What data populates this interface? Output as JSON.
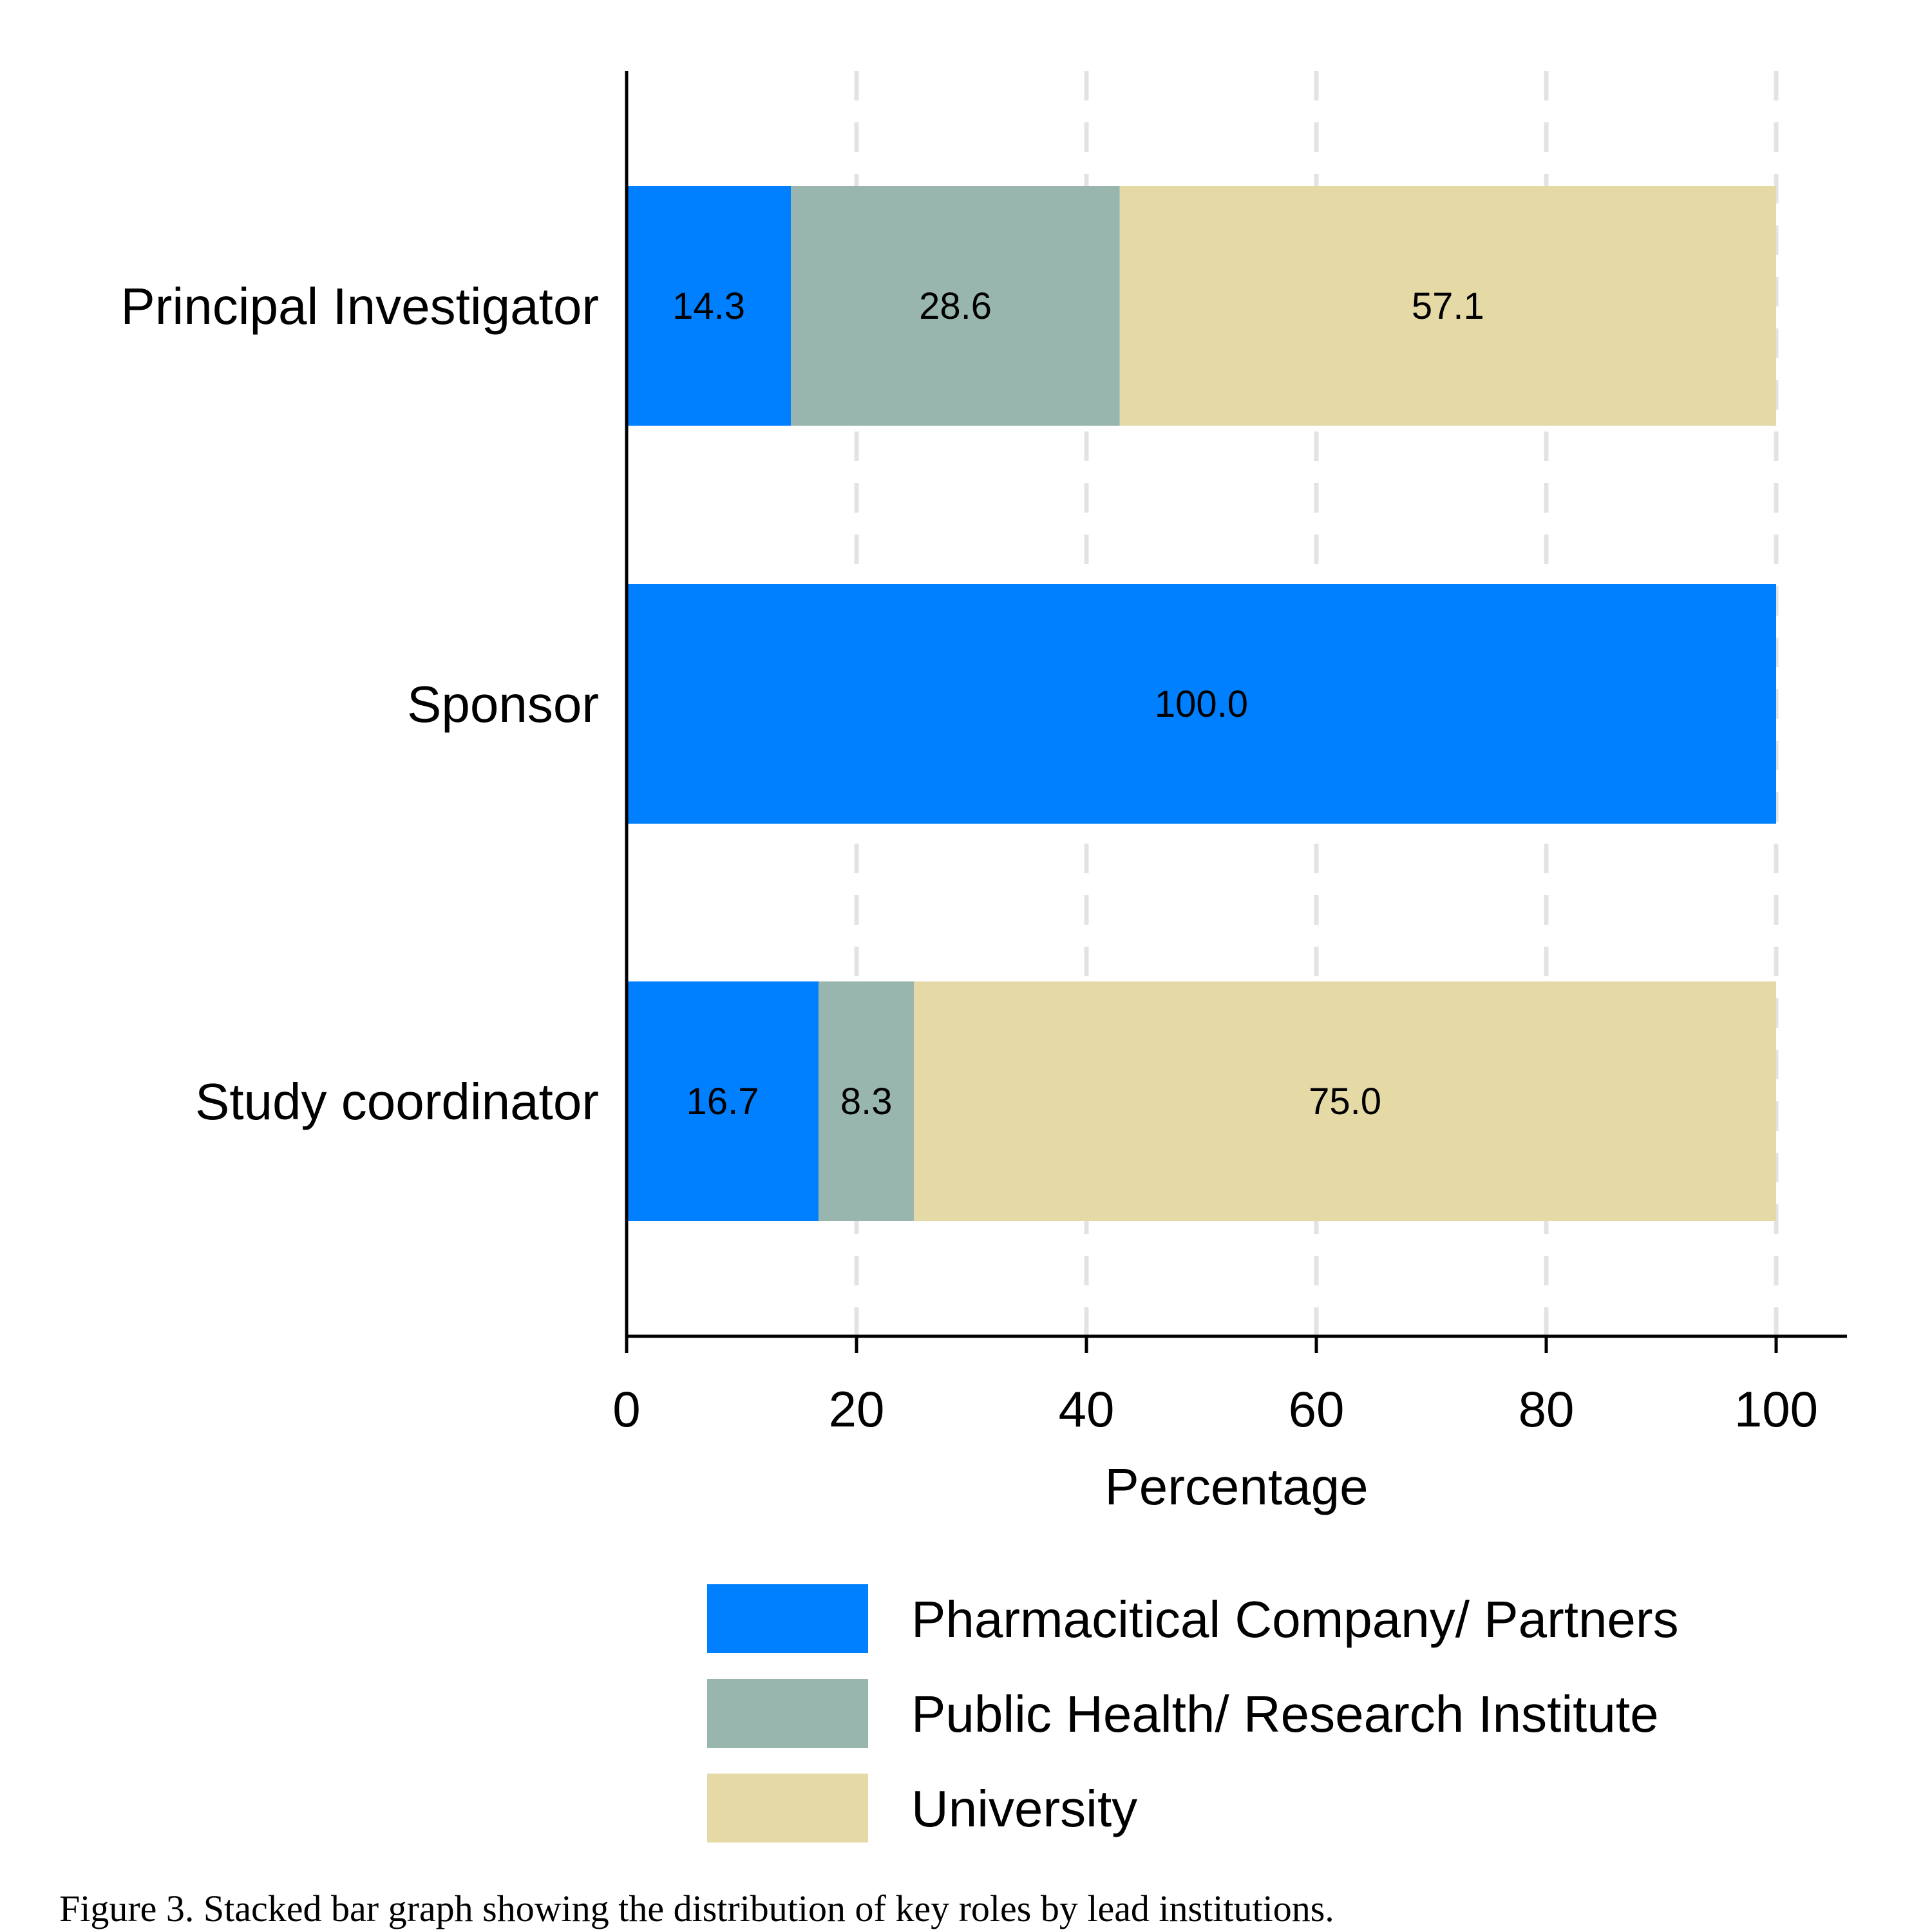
{
  "chart_data": {
    "type": "bar",
    "orientation": "horizontal",
    "stacked": true,
    "categories": [
      "Principal Investigator",
      "Sponsor",
      "Study coordinator"
    ],
    "series": [
      {
        "name": "Pharmacitical Company/ Partners",
        "color": "#0080ff",
        "values": [
          14.3,
          100.0,
          16.7
        ]
      },
      {
        "name": "Public Health/ Research Institute",
        "color": "#98b6ae",
        "values": [
          28.6,
          0,
          8.3
        ]
      },
      {
        "name": "University",
        "color": "#e5d9a6",
        "values": [
          57.1,
          0,
          75.0
        ]
      }
    ],
    "data_labels": [
      [
        "14.3",
        "100.0",
        "16.7"
      ],
      [
        "28.6",
        "",
        "8.3"
      ],
      [
        "57.1",
        "",
        "75.0"
      ]
    ],
    "xlabel": "Percentage",
    "ylabel": "",
    "xlim": [
      0,
      106
    ],
    "xticks": [
      0,
      20,
      40,
      60,
      80,
      100
    ],
    "xtick_labels": [
      "0",
      "20",
      "40",
      "60",
      "80",
      "100"
    ],
    "grid": "vertical dashed",
    "legend_position": "bottom"
  },
  "caption": "Figure 3. Stacked bar graph showing the distribution of key roles by lead institutions."
}
